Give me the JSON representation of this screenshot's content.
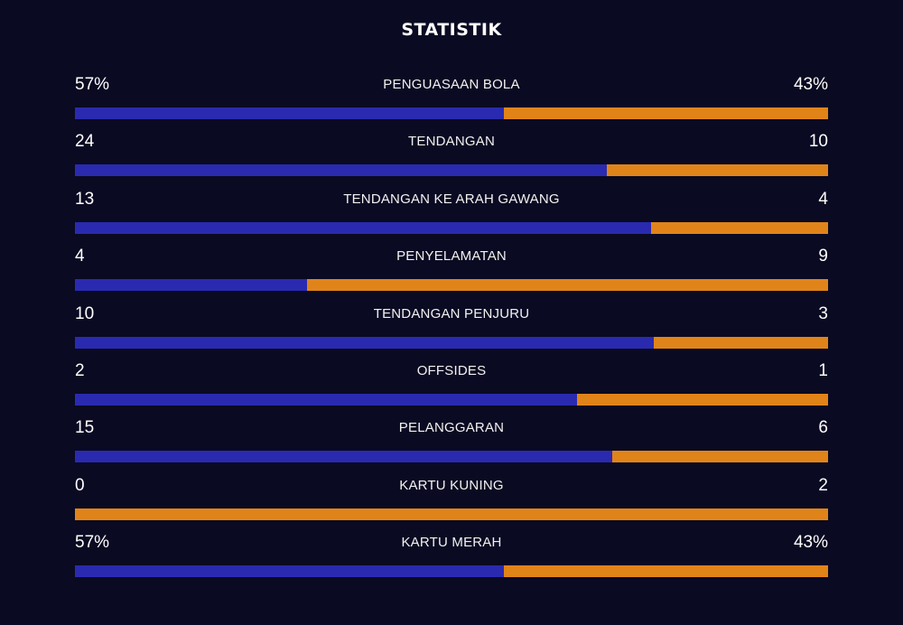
{
  "title": "STATISTIK",
  "colors": {
    "background": "#0a0a22",
    "home_bar": "#2a2ab0",
    "away_bar": "#e0841a",
    "text": "#ffffff"
  },
  "stats": [
    {
      "label": "PENGUASAAN BOLA",
      "home": "57%",
      "away": "43%",
      "home_share": 0.57
    },
    {
      "label": "TENDANGAN",
      "home": "24",
      "away": "10",
      "home_share": 0.706
    },
    {
      "label": "TENDANGAN KE ARAH GAWANG",
      "home": "13",
      "away": "4",
      "home_share": 0.765
    },
    {
      "label": "PENYELAMATAN",
      "home": "4",
      "away": "9",
      "home_share": 0.308
    },
    {
      "label": "TENDANGAN PENJURU",
      "home": "10",
      "away": "3",
      "home_share": 0.769
    },
    {
      "label": "OFFSIDES",
      "home": "2",
      "away": "1",
      "home_share": 0.667
    },
    {
      "label": "PELANGGARAN",
      "home": "15",
      "away": "6",
      "home_share": 0.714
    },
    {
      "label": "KARTU KUNING",
      "home": "0",
      "away": "2",
      "home_share": 0
    },
    {
      "label": "KARTU MERAH",
      "home": "57%",
      "away": "43%",
      "home_share": 0.57
    }
  ]
}
